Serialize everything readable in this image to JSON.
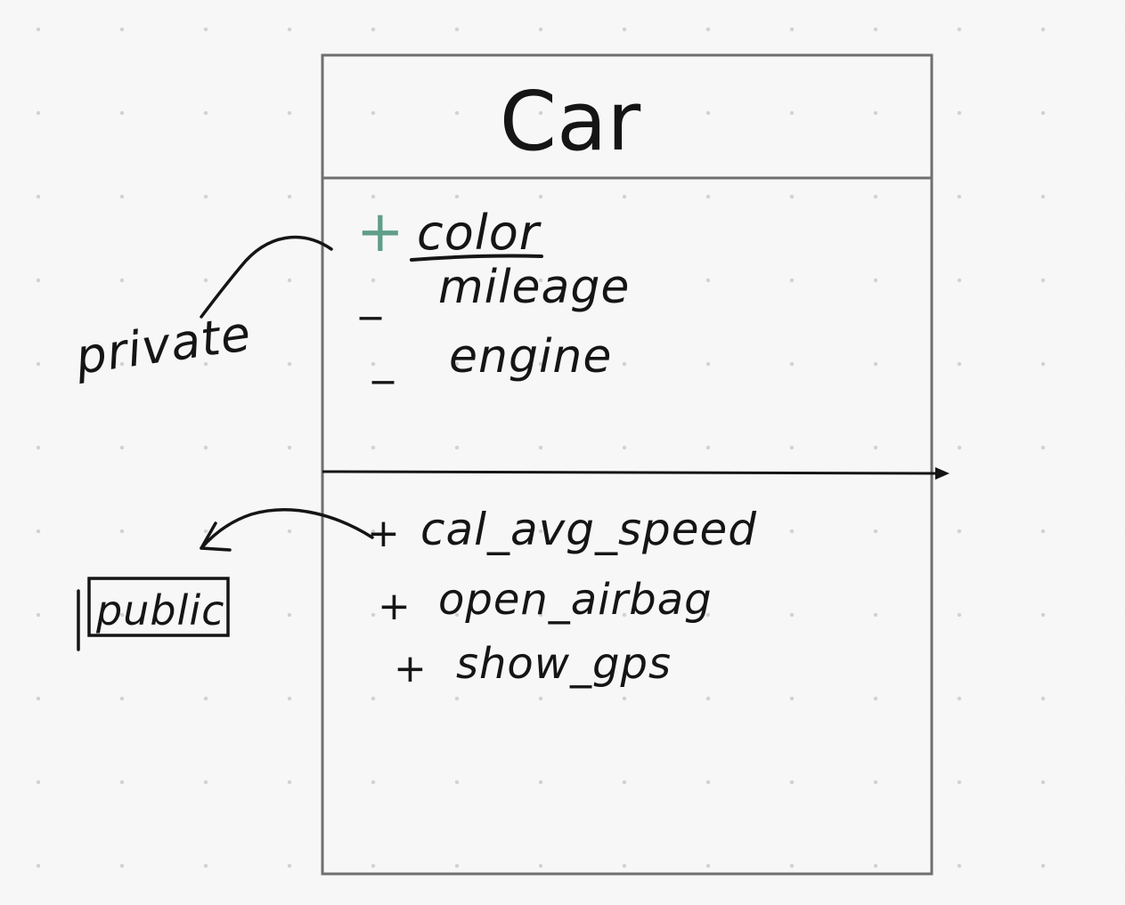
{
  "class_diagram": {
    "class_name": "Car",
    "attributes": [
      {
        "visibility": "+",
        "name": "color"
      },
      {
        "visibility": "_",
        "name": "mileage"
      },
      {
        "visibility": "_",
        "name": "engine"
      }
    ],
    "methods": [
      {
        "visibility": "+",
        "name": "cal_avg_speed"
      },
      {
        "visibility": "+",
        "name": "open_airbag"
      },
      {
        "visibility": "+",
        "name": "show_gps"
      }
    ]
  },
  "annotations": {
    "private_note": "private",
    "public_note": "public"
  },
  "colors": {
    "ink": "#151515",
    "highlight": "#5f9e8a",
    "canvas": "#f7f7f7",
    "grid_dot": "#d2d2d2"
  }
}
